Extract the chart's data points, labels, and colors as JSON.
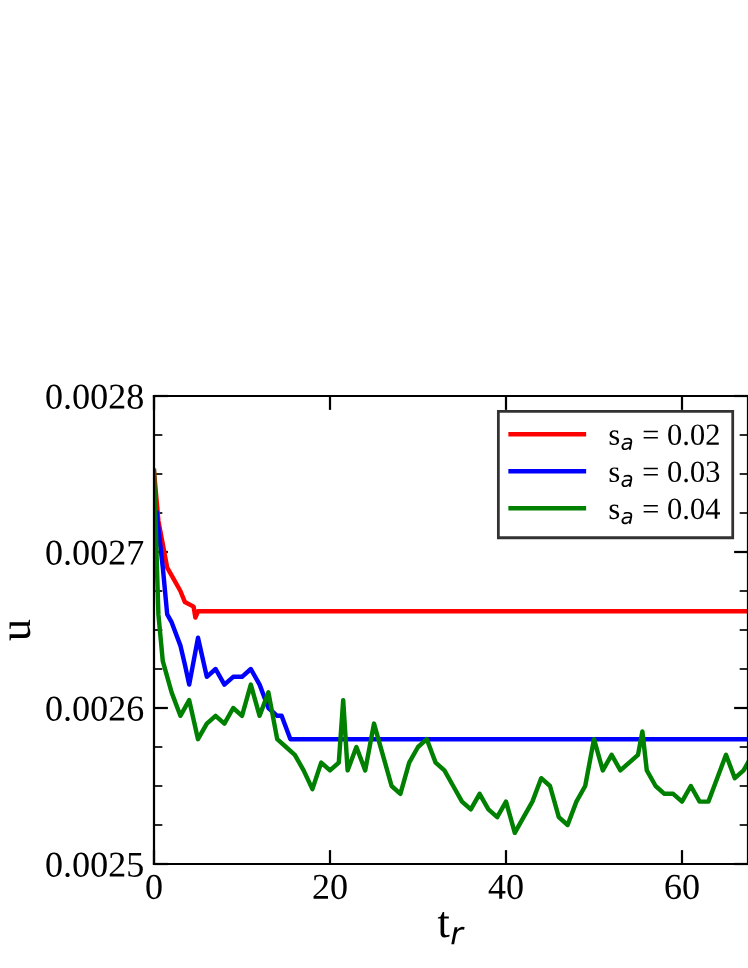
{
  "chart_data": {
    "type": "line",
    "xlabel": "t$_{r}$",
    "ylabel": "u",
    "xlim": [
      0,
      67.5
    ],
    "ylim": [
      0.0025,
      0.0028
    ],
    "xticks": [
      0,
      20,
      40,
      60
    ],
    "yticks": [
      0.0025,
      0.0026,
      0.0027,
      0.0028
    ],
    "legend": "top right",
    "grid": false,
    "line_style": "solid",
    "marker": "none",
    "series": [
      {
        "name": "s$_{a}$ = 0.02",
        "color": "#ff0000",
        "x": [
          0,
          0.5,
          1,
          1.5,
          2,
          3,
          3.5,
          4.5,
          4.7,
          5,
          10,
          20,
          30,
          40,
          50,
          60,
          67.5
        ],
        "values": [
          0.002752,
          0.00272,
          0.002705,
          0.00269,
          0.002685,
          0.002675,
          0.002668,
          0.002665,
          0.002658,
          0.002662,
          0.002662,
          0.002662,
          0.002662,
          0.002662,
          0.002662,
          0.002662,
          0.002662
        ]
      },
      {
        "name": "s$_{a}$ = 0.03",
        "color": "#0000ff",
        "x": [
          0.3,
          1,
          1.5,
          2,
          3,
          3.5,
          4,
          5,
          6,
          7,
          8,
          9,
          10,
          11,
          12,
          13,
          14,
          14.5,
          15.5,
          20,
          30,
          40,
          50,
          60,
          67.5
        ],
        "values": [
          0.002725,
          0.00269,
          0.00266,
          0.002655,
          0.00264,
          0.002628,
          0.002615,
          0.002645,
          0.00262,
          0.002625,
          0.002615,
          0.00262,
          0.00262,
          0.002625,
          0.002615,
          0.0026,
          0.002595,
          0.002595,
          0.00258,
          0.00258,
          0.00258,
          0.00258,
          0.00258,
          0.00258,
          0.00258
        ]
      },
      {
        "name": "s$_{a}$ = 0.04",
        "color": "#008000",
        "x": [
          0,
          0.5,
          1,
          2,
          3,
          4,
          5,
          6,
          7,
          8,
          9,
          10,
          11,
          12,
          13,
          14,
          15,
          16,
          17,
          18,
          19,
          20,
          21,
          21.5,
          22,
          23,
          24,
          25,
          26,
          27,
          28,
          29,
          30,
          31,
          32,
          33,
          34,
          35,
          36,
          37,
          38,
          39,
          40,
          41,
          42,
          43,
          44,
          45,
          46,
          47,
          48,
          49,
          50,
          51,
          52,
          53,
          54,
          55,
          55.5,
          56,
          57,
          58,
          59,
          60,
          61,
          62,
          63,
          64,
          65,
          66,
          67,
          67.5
        ],
        "values": [
          0.002752,
          0.00266,
          0.00263,
          0.00261,
          0.002595,
          0.002605,
          0.00258,
          0.00259,
          0.002595,
          0.00259,
          0.0026,
          0.002595,
          0.002615,
          0.002595,
          0.00261,
          0.00258,
          0.002575,
          0.00257,
          0.00256,
          0.002548,
          0.002565,
          0.00256,
          0.002565,
          0.002605,
          0.00256,
          0.002575,
          0.00256,
          0.00259,
          0.00257,
          0.00255,
          0.002545,
          0.002565,
          0.002575,
          0.00258,
          0.002565,
          0.00256,
          0.00255,
          0.00254,
          0.002535,
          0.002545,
          0.002535,
          0.00253,
          0.00254,
          0.00252,
          0.00253,
          0.00254,
          0.002555,
          0.00255,
          0.00253,
          0.002525,
          0.00254,
          0.00255,
          0.00258,
          0.00256,
          0.00257,
          0.00256,
          0.002565,
          0.00257,
          0.002585,
          0.00256,
          0.00255,
          0.002545,
          0.002545,
          0.00254,
          0.00255,
          0.00254,
          0.00254,
          0.002555,
          0.00257,
          0.002555,
          0.00256,
          0.002565
        ]
      }
    ]
  }
}
